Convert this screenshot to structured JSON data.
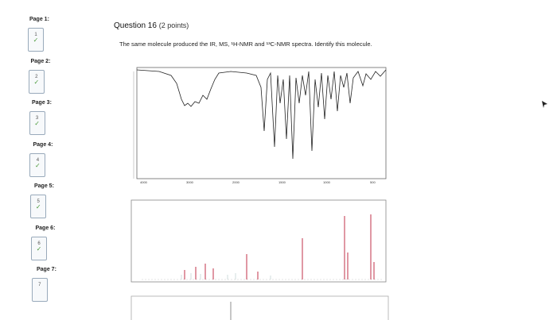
{
  "sidebar": {
    "pages": [
      {
        "label": "Page 1:",
        "number": "1",
        "answered": true
      },
      {
        "label": "Page 2:",
        "number": "2",
        "answered": true
      },
      {
        "label": "Page 3:",
        "number": "3",
        "answered": true
      },
      {
        "label": "Page 4:",
        "number": "4",
        "answered": true
      },
      {
        "label": "Page 5:",
        "number": "5",
        "answered": true
      },
      {
        "label": "Page 6:",
        "number": "6",
        "answered": true
      },
      {
        "label": "Page 7:",
        "number": "7",
        "answered": false
      }
    ]
  },
  "question": {
    "title": "Question 16",
    "points": "(2 points)",
    "text": "The same molecule produced the IR, MS, ¹H-NMR and ¹³C-NMR spectra. Identify this molecule."
  }
}
